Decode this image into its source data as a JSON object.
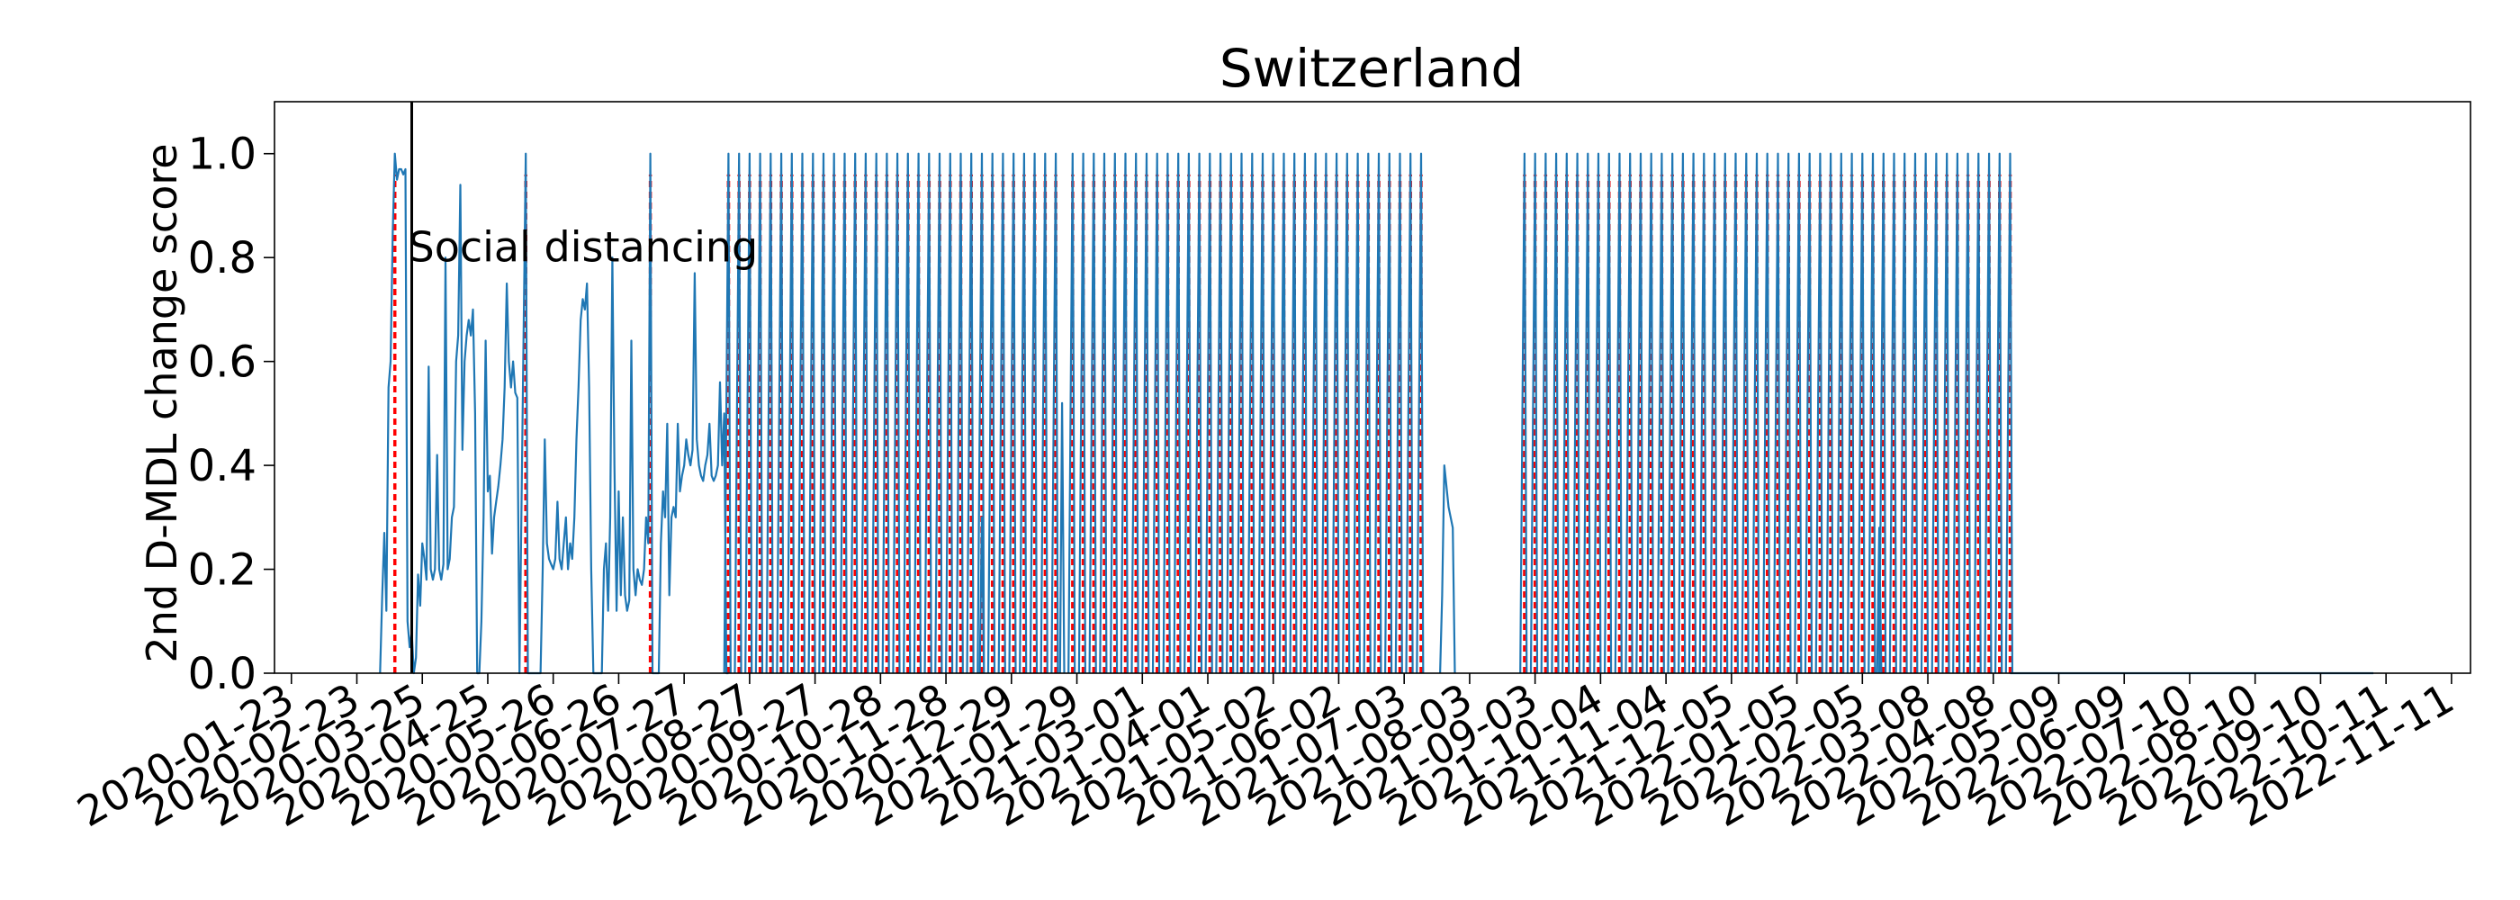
{
  "chart_data": {
    "type": "line",
    "title": "Switzerland",
    "xlabel": "",
    "ylabel": "2nd D-MDL change score",
    "x_start": "2020-01-23",
    "x_end": "2022-11-11",
    "xlim": [
      "2020-01-15",
      "2022-11-20"
    ],
    "ylim": [
      0,
      1.1
    ],
    "grid": false,
    "x_ticks": [
      "2020-01-23",
      "2020-02-23",
      "2020-03-25",
      "2020-04-25",
      "2020-05-26",
      "2020-06-26",
      "2020-07-27",
      "2020-08-27",
      "2020-09-27",
      "2020-10-28",
      "2020-11-28",
      "2020-12-29",
      "2021-01-29",
      "2021-03-01",
      "2021-04-01",
      "2021-05-02",
      "2021-06-02",
      "2021-07-03",
      "2021-08-03",
      "2021-09-03",
      "2021-10-04",
      "2021-11-04",
      "2021-12-05",
      "2022-01-05",
      "2022-02-05",
      "2022-03-08",
      "2022-04-08",
      "2022-05-09",
      "2022-06-09",
      "2022-07-10",
      "2022-08-10",
      "2022-09-10",
      "2022-10-11",
      "2022-11-11"
    ],
    "y_ticks": [
      "0.0",
      "0.2",
      "0.4",
      "0.6",
      "0.8",
      "1.0"
    ],
    "y_tick_values": [
      0,
      0.2,
      0.4,
      0.6,
      0.8,
      1.0
    ],
    "series_color": "#1f77b4",
    "alarm_color": "#ff0000",
    "event_line": {
      "date": "2020-03-20",
      "label": "Social distancing",
      "label_y": 0.82,
      "color": "#000000"
    },
    "early_points": [
      [
        "2020-03-05",
        0
      ],
      [
        "2020-03-06",
        0.15
      ],
      [
        "2020-03-07",
        0.27
      ],
      [
        "2020-03-08",
        0.12
      ],
      [
        "2020-03-09",
        0.55
      ],
      [
        "2020-03-10",
        0.6
      ],
      [
        "2020-03-11",
        0.85
      ],
      [
        "2020-03-12",
        1.0
      ],
      [
        "2020-03-13",
        0.95
      ],
      [
        "2020-03-14",
        0.97
      ],
      [
        "2020-03-15",
        0.97
      ],
      [
        "2020-03-16",
        0.96
      ],
      [
        "2020-03-17",
        0.97
      ],
      [
        "2020-03-18",
        0.1
      ],
      [
        "2020-03-19",
        0.05
      ],
      [
        "2020-03-20",
        0.08
      ],
      [
        "2020-03-21",
        0.0
      ],
      [
        "2020-03-22",
        0.03
      ],
      [
        "2020-03-23",
        0.19
      ],
      [
        "2020-03-24",
        0.13
      ],
      [
        "2020-03-25",
        0.25
      ],
      [
        "2020-03-26",
        0.22
      ],
      [
        "2020-03-27",
        0.18
      ],
      [
        "2020-03-28",
        0.59
      ],
      [
        "2020-03-29",
        0.2
      ],
      [
        "2020-03-30",
        0.18
      ],
      [
        "2020-03-31",
        0.2
      ],
      [
        "2020-04-01",
        0.42
      ],
      [
        "2020-04-02",
        0.2
      ],
      [
        "2020-04-03",
        0.18
      ],
      [
        "2020-04-04",
        0.21
      ],
      [
        "2020-04-05",
        0.8
      ],
      [
        "2020-04-06",
        0.2
      ],
      [
        "2020-04-07",
        0.22
      ],
      [
        "2020-04-08",
        0.3
      ],
      [
        "2020-04-09",
        0.32
      ],
      [
        "2020-04-10",
        0.6
      ],
      [
        "2020-04-11",
        0.65
      ],
      [
        "2020-04-12",
        0.94
      ],
      [
        "2020-04-13",
        0.43
      ],
      [
        "2020-04-14",
        0.6
      ],
      [
        "2020-04-15",
        0.65
      ],
      [
        "2020-04-16",
        0.68
      ],
      [
        "2020-04-17",
        0.65
      ],
      [
        "2020-04-18",
        0.7
      ],
      [
        "2020-04-19",
        0.5
      ],
      [
        "2020-04-20",
        0.0
      ],
      [
        "2020-04-21",
        0.0
      ],
      [
        "2020-04-22",
        0.1
      ],
      [
        "2020-04-23",
        0.3
      ],
      [
        "2020-04-24",
        0.64
      ],
      [
        "2020-04-25",
        0.35
      ],
      [
        "2020-04-26",
        0.38
      ],
      [
        "2020-04-27",
        0.23
      ],
      [
        "2020-04-28",
        0.3
      ],
      [
        "2020-04-29",
        0.33
      ],
      [
        "2020-04-30",
        0.36
      ],
      [
        "2020-05-01",
        0.4
      ],
      [
        "2020-05-02",
        0.45
      ],
      [
        "2020-05-03",
        0.55
      ],
      [
        "2020-05-04",
        0.75
      ],
      [
        "2020-05-05",
        0.6
      ],
      [
        "2020-05-06",
        0.55
      ],
      [
        "2020-05-07",
        0.6
      ],
      [
        "2020-05-08",
        0.54
      ],
      [
        "2020-05-09",
        0.53
      ],
      [
        "2020-05-10",
        0.0
      ],
      [
        "2020-05-13",
        1.0
      ],
      [
        "2020-05-14",
        0.0
      ],
      [
        "2020-05-20",
        0.0
      ],
      [
        "2020-05-21",
        0.2
      ],
      [
        "2020-05-22",
        0.45
      ],
      [
        "2020-05-23",
        0.25
      ],
      [
        "2020-05-24",
        0.22
      ],
      [
        "2020-05-25",
        0.21
      ],
      [
        "2020-05-26",
        0.2
      ],
      [
        "2020-05-27",
        0.22
      ],
      [
        "2020-05-28",
        0.33
      ],
      [
        "2020-05-29",
        0.22
      ],
      [
        "2020-05-30",
        0.2
      ],
      [
        "2020-05-31",
        0.25
      ],
      [
        "2020-06-01",
        0.3
      ],
      [
        "2020-06-02",
        0.2
      ],
      [
        "2020-06-03",
        0.25
      ],
      [
        "2020-06-04",
        0.22
      ],
      [
        "2020-06-05",
        0.3
      ],
      [
        "2020-06-06",
        0.45
      ],
      [
        "2020-06-07",
        0.55
      ],
      [
        "2020-06-08",
        0.68
      ],
      [
        "2020-06-09",
        0.72
      ],
      [
        "2020-06-10",
        0.7
      ],
      [
        "2020-06-11",
        0.75
      ],
      [
        "2020-06-12",
        0.55
      ],
      [
        "2020-06-13",
        0.2
      ],
      [
        "2020-06-14",
        0.0
      ],
      [
        "2020-06-18",
        0.0
      ],
      [
        "2020-06-19",
        0.2
      ],
      [
        "2020-06-20",
        0.25
      ],
      [
        "2020-06-21",
        0.12
      ],
      [
        "2020-06-22",
        0.3
      ],
      [
        "2020-06-23",
        0.8
      ],
      [
        "2020-06-24",
        0.4
      ],
      [
        "2020-06-25",
        0.12
      ],
      [
        "2020-06-26",
        0.35
      ],
      [
        "2020-06-27",
        0.15
      ],
      [
        "2020-06-28",
        0.3
      ],
      [
        "2020-06-29",
        0.15
      ],
      [
        "2020-06-30",
        0.12
      ],
      [
        "2020-07-01",
        0.14
      ],
      [
        "2020-07-02",
        0.64
      ],
      [
        "2020-07-03",
        0.2
      ],
      [
        "2020-07-04",
        0.15
      ],
      [
        "2020-07-05",
        0.2
      ],
      [
        "2020-07-06",
        0.18
      ],
      [
        "2020-07-07",
        0.17
      ],
      [
        "2020-07-08",
        0.2
      ],
      [
        "2020-07-09",
        0.3
      ],
      [
        "2020-07-10",
        0.25
      ],
      [
        "2020-07-11",
        1.0
      ],
      [
        "2020-07-12",
        0.0
      ],
      [
        "2020-07-15",
        0.0
      ],
      [
        "2020-07-16",
        0.25
      ],
      [
        "2020-07-17",
        0.35
      ],
      [
        "2020-07-18",
        0.3
      ],
      [
        "2020-07-19",
        0.48
      ],
      [
        "2020-07-20",
        0.15
      ],
      [
        "2020-07-21",
        0.3
      ],
      [
        "2020-07-22",
        0.32
      ],
      [
        "2020-07-23",
        0.3
      ],
      [
        "2020-07-24",
        0.48
      ],
      [
        "2020-07-25",
        0.35
      ],
      [
        "2020-07-26",
        0.38
      ],
      [
        "2020-07-27",
        0.4
      ],
      [
        "2020-07-28",
        0.45
      ],
      [
        "2020-07-29",
        0.42
      ],
      [
        "2020-07-30",
        0.4
      ],
      [
        "2020-07-31",
        0.43
      ],
      [
        "2020-08-01",
        0.77
      ],
      [
        "2020-08-02",
        0.45
      ],
      [
        "2020-08-03",
        0.4
      ],
      [
        "2020-08-04",
        0.38
      ],
      [
        "2020-08-05",
        0.37
      ],
      [
        "2020-08-06",
        0.4
      ],
      [
        "2020-08-07",
        0.42
      ],
      [
        "2020-08-08",
        0.48
      ],
      [
        "2020-08-09",
        0.38
      ],
      [
        "2020-08-10",
        0.37
      ],
      [
        "2020-08-11",
        0.38
      ],
      [
        "2020-08-12",
        0.4
      ],
      [
        "2020-08-13",
        0.56
      ],
      [
        "2020-08-14",
        0.4
      ],
      [
        "2020-08-15",
        0.5
      ],
      [
        "2020-08-16",
        0.0
      ],
      [
        "2020-08-17",
        0.0
      ]
    ],
    "spike_run_1": {
      "start": "2020-08-17",
      "end": "2021-01-21",
      "interval_days": 5,
      "peak": 1.0
    },
    "spike_run_2": {
      "start": "2021-01-27",
      "end": "2021-07-15",
      "interval_days": 5,
      "peak": 1.0
    },
    "spike_run_3": {
      "start": "2021-08-29",
      "end": "2022-04-16",
      "interval_days": 5,
      "peak": 1.0
    },
    "extra_segments": [
      [
        [
          "2020-12-14",
          0
        ],
        [
          "2020-12-15",
          0.3
        ],
        [
          "2020-12-16",
          0
        ]
      ],
      [
        [
          "2021-01-21",
          0
        ],
        [
          "2021-01-22",
          0.52
        ],
        [
          "2021-01-23",
          0
        ]
      ],
      [
        [
          "2021-07-20",
          0
        ],
        [
          "2021-07-21",
          0.15
        ],
        [
          "2021-07-22",
          0.4
        ],
        [
          "2021-07-24",
          0.32
        ],
        [
          "2021-07-26",
          0.28
        ],
        [
          "2021-07-27",
          0
        ]
      ],
      [
        [
          "2022-02-12",
          0
        ],
        [
          "2022-02-13",
          0.28
        ],
        [
          "2022-02-14",
          0
        ]
      ]
    ],
    "flat_zero_after": {
      "start": "2022-04-16",
      "end": "2022-10-05",
      "value": 0.0
    },
    "alarm_dates": [
      "2020-03-12",
      "2020-05-13",
      "2020-07-11",
      "2020-08-17"
    ]
  }
}
